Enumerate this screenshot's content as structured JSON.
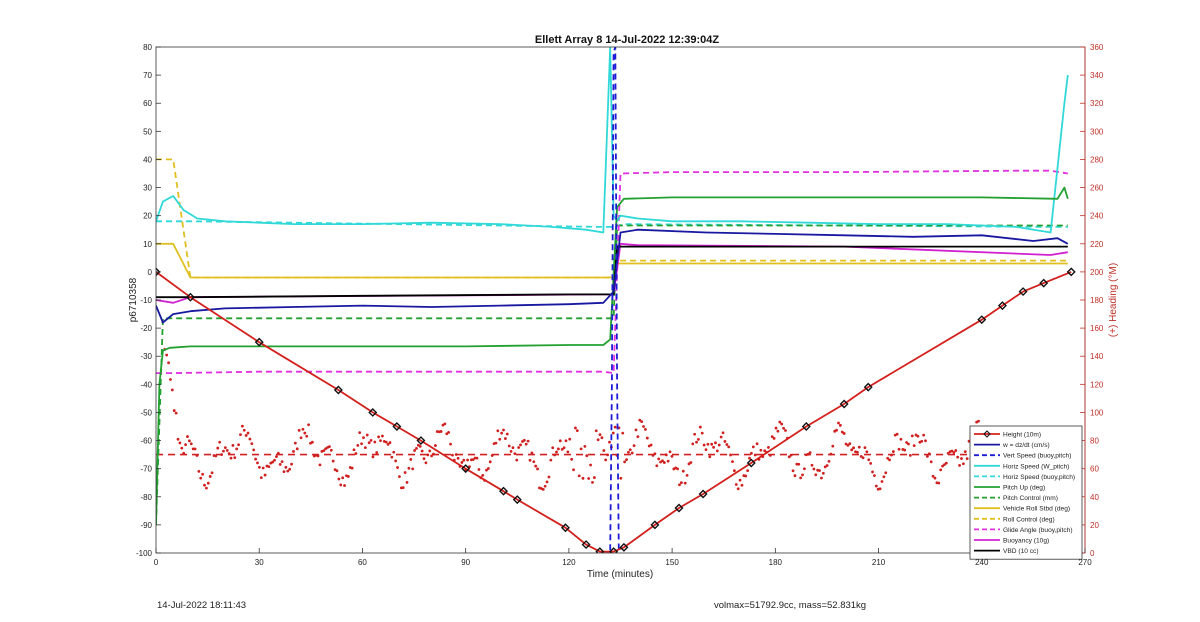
{
  "chart_data": {
    "type": "line",
    "title": "Ellett Array 8 14-Jul-2022 12:39:04Z",
    "xlabel": "Time (minutes)",
    "ylabel": "p6710358",
    "ylabel_right": "(+) Heading (°M)",
    "xlim": [
      0,
      270
    ],
    "ylim": [
      -100,
      80
    ],
    "ylim_right": [
      0,
      360
    ],
    "xticks": [
      "0",
      "30",
      "60",
      "90",
      "120",
      "150",
      "180",
      "210",
      "240",
      "270"
    ],
    "yticks": [
      "-100",
      "-90",
      "-80",
      "-70",
      "-60",
      "-50",
      "-40",
      "-30",
      "-20",
      "-10",
      "0",
      "10",
      "20",
      "30",
      "40",
      "50",
      "60",
      "70",
      "80"
    ],
    "yticks_right": [
      "0",
      "20",
      "40",
      "60",
      "80",
      "100",
      "120",
      "140",
      "160",
      "180",
      "200",
      "220",
      "240",
      "260",
      "280",
      "300",
      "320",
      "340",
      "360"
    ],
    "legend_position": "bottom-right",
    "grid": false,
    "series": [
      {
        "name": "Height (10m)",
        "color": "#d4201c",
        "style": "solid-markers",
        "x": [
          0,
          10,
          30,
          53,
          63,
          70,
          77,
          90,
          101,
          105,
          119,
          125,
          129,
          133,
          136,
          145,
          152,
          159,
          173,
          189,
          200,
          207,
          240,
          246,
          252,
          258,
          266
        ],
        "y": [
          0,
          -9,
          -25,
          -42,
          -50,
          -55,
          -60,
          -70,
          -78,
          -81,
          -91,
          -97,
          -99.5,
          -99.5,
          -98,
          -90,
          -84,
          -79,
          -68,
          -55,
          -47,
          -41,
          -17,
          -12,
          -7,
          -4,
          0
        ]
      },
      {
        "name": "w = dz/dt (cm/s)",
        "color": "#1818a0",
        "style": "solid",
        "x": [
          0,
          2,
          5,
          10,
          20,
          40,
          60,
          80,
          100,
          120,
          130,
          133,
          135,
          140,
          160,
          180,
          200,
          220,
          240,
          255,
          262,
          265
        ],
        "y": [
          -12,
          -18,
          -15,
          -14,
          -13,
          -12.5,
          -12,
          -12.5,
          -12,
          -11.5,
          -11,
          -7,
          14,
          15,
          14,
          13.5,
          13,
          12.5,
          13,
          11,
          12,
          10
        ]
      },
      {
        "name": "Vert Speed (buoy,pitch)",
        "color": "#1c1cd6",
        "style": "dashed",
        "x": [
          132,
          132.5,
          133,
          133.5,
          134,
          134.5
        ],
        "y": [
          -99,
          -40,
          78,
          80,
          -40,
          -99
        ]
      },
      {
        "name": "Horiz Speed (W_pitch)",
        "color": "#30d8d8",
        "style": "solid",
        "x": [
          0,
          2,
          5,
          8,
          12,
          20,
          30,
          40,
          60,
          80,
          100,
          115,
          125,
          130,
          132,
          133,
          134,
          135,
          140,
          150,
          170,
          190,
          210,
          230,
          250,
          260,
          264,
          265
        ],
        "y": [
          18,
          25,
          27,
          22,
          19,
          18,
          17.5,
          17,
          17,
          17.5,
          17,
          16,
          15,
          14,
          80,
          20,
          18,
          20,
          19,
          18,
          18,
          17.5,
          17,
          17,
          16,
          14,
          60,
          70
        ]
      },
      {
        "name": "Horiz Speed (buoy,pitch)",
        "color": "#30d8d8",
        "style": "dashed",
        "x": [
          0,
          10,
          130,
          133,
          136,
          260,
          265
        ],
        "y": [
          18,
          18,
          16,
          16,
          17,
          16,
          16
        ]
      },
      {
        "name": "Pitch Up (deg)",
        "color": "#22a030",
        "style": "solid",
        "x": [
          0,
          1,
          2,
          4,
          10,
          30,
          60,
          90,
          120,
          130,
          132,
          134,
          136,
          150,
          180,
          210,
          240,
          262,
          264,
          265
        ],
        "y": [
          -90,
          -40,
          -28,
          -27,
          -26.5,
          -26.5,
          -26.5,
          -26.5,
          -26,
          -26,
          -24,
          23,
          26,
          26.5,
          26.5,
          26.5,
          26.5,
          26,
          30,
          26
        ]
      },
      {
        "name": "Pitch Control (mm)",
        "color": "#22a030",
        "style": "dashed",
        "x": [
          0,
          2,
          5,
          133,
          134,
          265
        ],
        "y": [
          -90,
          -16.5,
          -16.5,
          -16.5,
          16.5,
          16.5
        ]
      },
      {
        "name": "Vehicle Roll Stbd (deg)",
        "color": "#e0c020",
        "style": "solid",
        "x": [
          0,
          5,
          10,
          120,
          133,
          134,
          140,
          180,
          220,
          260,
          265
        ],
        "y": [
          10,
          10,
          -2,
          -2,
          -2,
          3,
          3,
          3,
          3,
          3,
          3
        ]
      },
      {
        "name": "Roll Control (deg)",
        "color": "#e0c020",
        "style": "dashed",
        "x": [
          0,
          5,
          10,
          30,
          60,
          90,
          120,
          133,
          134,
          140,
          180,
          220,
          260,
          265
        ],
        "y": [
          40,
          40,
          -2,
          -2,
          -2,
          -2,
          -2,
          -2,
          4,
          4,
          4,
          4,
          4,
          4
        ]
      },
      {
        "name": "Glide Angle (buoy,pitch)",
        "color": "#e030e0",
        "style": "dashed",
        "x": [
          0,
          5,
          30,
          60,
          90,
          120,
          130,
          133,
          135,
          150,
          200,
          250,
          260,
          265
        ],
        "y": [
          -36,
          -36,
          -35.5,
          -35.5,
          -35.5,
          -35.5,
          -35.5,
          -36,
          35,
          35.5,
          35.5,
          36,
          36,
          35
        ]
      },
      {
        "name": "Buoyancy (10g)",
        "color": "#d020d0",
        "style": "solid",
        "x": [
          0,
          5,
          10,
          130,
          133,
          135,
          140,
          200,
          260,
          265
        ],
        "y": [
          -10,
          -11,
          -9,
          -8,
          -8,
          10,
          9.5,
          9,
          6,
          7
        ]
      },
      {
        "name": "VBD (10 cc)",
        "color": "#000000",
        "style": "solid",
        "x": [
          0,
          5,
          10,
          60,
          120,
          133,
          134,
          140,
          200,
          260,
          264,
          265
        ],
        "y": [
          -9,
          -9,
          -9,
          -8.5,
          -8,
          -8,
          9,
          9,
          9,
          9,
          9,
          9
        ]
      }
    ],
    "heading_mean_deg": 70
  },
  "footer": {
    "left": "14-Jul-2022 18:11:43",
    "right": "volmax=51792.9cc, mass=52.831kg"
  }
}
